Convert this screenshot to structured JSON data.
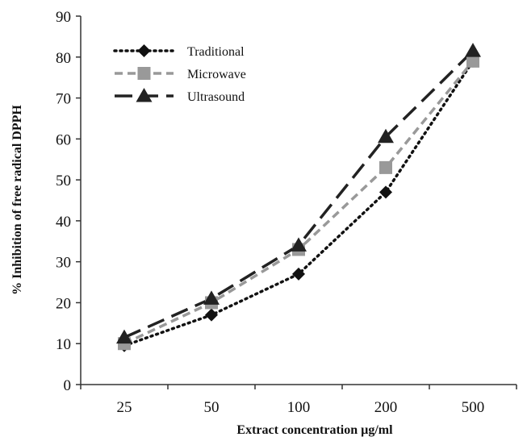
{
  "chart_data": {
    "type": "line",
    "title": "",
    "xlabel": "Extract concentration µg/ml",
    "ylabel": "% Inhibition of free radical DPPH",
    "categories": [
      "25",
      "50",
      "100",
      "200",
      "500"
    ],
    "ylim": [
      0,
      90
    ],
    "yticks": [
      "0",
      "10",
      "20",
      "30",
      "40",
      "50",
      "60",
      "70",
      "80",
      "90"
    ],
    "grid": false,
    "legend_position": "top-left",
    "series": [
      {
        "name": "Traditional",
        "values": [
          9.5,
          17,
          27,
          47,
          79
        ],
        "color": "#111111",
        "marker": "diamond",
        "line_style": "dotted"
      },
      {
        "name": "Microwave",
        "values": [
          10,
          20,
          33,
          53,
          79
        ],
        "color": "#999999",
        "marker": "square",
        "line_style": "dashed"
      },
      {
        "name": "Ultrasound",
        "values": [
          11.5,
          21,
          34,
          60.5,
          81.5
        ],
        "color": "#222222",
        "marker": "triangle",
        "line_style": "long-dashed"
      }
    ]
  }
}
